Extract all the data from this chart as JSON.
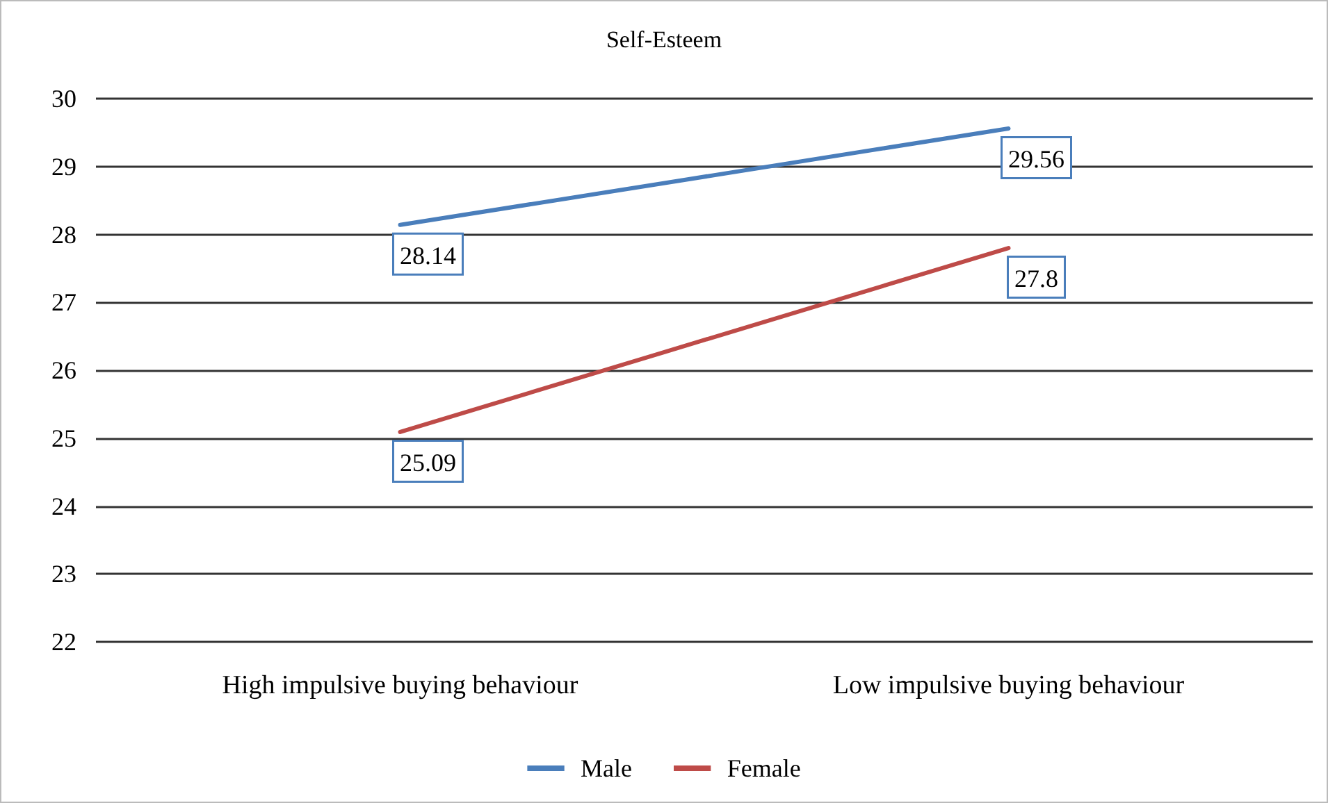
{
  "chart_data": {
    "type": "line",
    "title": "Self-Esteem",
    "categories": [
      "High impulsive buying behaviour",
      "Low impulsive buying behaviour"
    ],
    "series": [
      {
        "name": "Male",
        "color": "#4a7ebb",
        "values": [
          28.14,
          29.56
        ]
      },
      {
        "name": "Female",
        "color": "#be4b48",
        "values": [
          25.09,
          27.8
        ]
      }
    ],
    "ylim": [
      22,
      30
    ],
    "yticks": [
      22,
      23,
      24,
      25,
      26,
      27,
      28,
      29,
      30
    ],
    "grid": "y",
    "legend": "bottom",
    "data_labels": true,
    "marker": "none",
    "line_style": "solid"
  }
}
